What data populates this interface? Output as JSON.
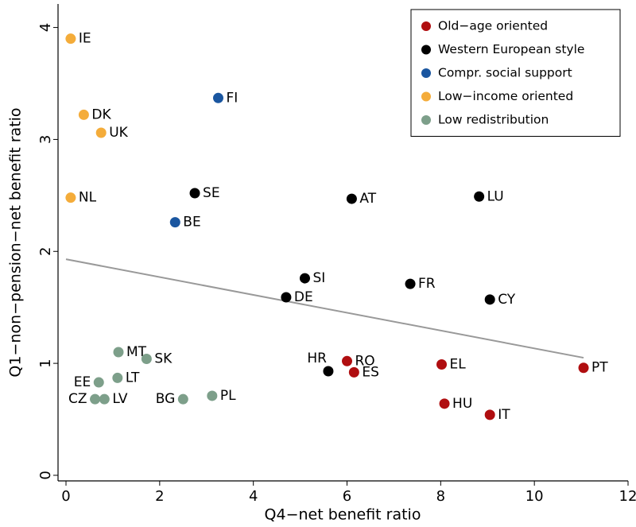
{
  "chart_data": {
    "type": "scatter",
    "x_label": "Q4−net benefit ratio",
    "y_label": "Q1−non−pension−net benefit ratio",
    "xlim": [
      -0.17,
      12
    ],
    "ylim": [
      -0.05,
      4.21
    ],
    "xticks": [
      0,
      2,
      4,
      6,
      8,
      10,
      12
    ],
    "yticks": [
      0,
      1,
      2,
      3,
      4
    ],
    "legend": "top-right",
    "series": [
      {
        "name": "Old−age oriented",
        "color": "#b00e10",
        "labels": [
          "RO",
          "ES",
          "EL",
          "HU",
          "IT",
          "PT"
        ],
        "x": [
          6.0,
          6.15,
          8.02,
          8.08,
          9.05,
          11.05
        ],
        "values": [
          1.02,
          0.92,
          0.99,
          0.64,
          0.54,
          0.96
        ]
      },
      {
        "name": "Western European style",
        "color": "#000000",
        "labels": [
          "SE",
          "AT",
          "LU",
          "SI",
          "FR",
          "DE",
          "CY",
          "HR"
        ],
        "x": [
          2.75,
          6.1,
          8.82,
          5.1,
          7.35,
          4.7,
          9.05,
          5.6
        ],
        "values": [
          2.52,
          2.47,
          2.49,
          1.76,
          1.71,
          1.59,
          1.57,
          0.93
        ]
      },
      {
        "name": "Compr. social support",
        "color": "#1a56a0",
        "labels": [
          "FI",
          "BE"
        ],
        "x": [
          3.25,
          2.33
        ],
        "values": [
          3.37,
          2.26
        ]
      },
      {
        "name": "Low−income oriented",
        "color": "#f4ac3a",
        "labels": [
          "IE",
          "DK",
          "UK",
          "NL"
        ],
        "x": [
          0.1,
          0.38,
          0.75,
          0.1
        ],
        "values": [
          3.9,
          3.22,
          3.06,
          2.48
        ]
      },
      {
        "name": "Low redistribution",
        "color": "#7d9f8a",
        "labels": [
          "MT",
          "SK",
          "EE",
          "LT",
          "CZ",
          "LV",
          "BG",
          "PL"
        ],
        "x": [
          1.12,
          1.72,
          0.7,
          1.1,
          0.62,
          0.82,
          2.5,
          3.12
        ],
        "values": [
          1.1,
          1.04,
          0.83,
          0.87,
          0.68,
          0.68,
          0.68,
          0.71
        ]
      }
    ],
    "fit_line": {
      "color": "#999999",
      "x": [
        0,
        11.05
      ],
      "values": [
        1.93,
        1.05
      ]
    }
  }
}
